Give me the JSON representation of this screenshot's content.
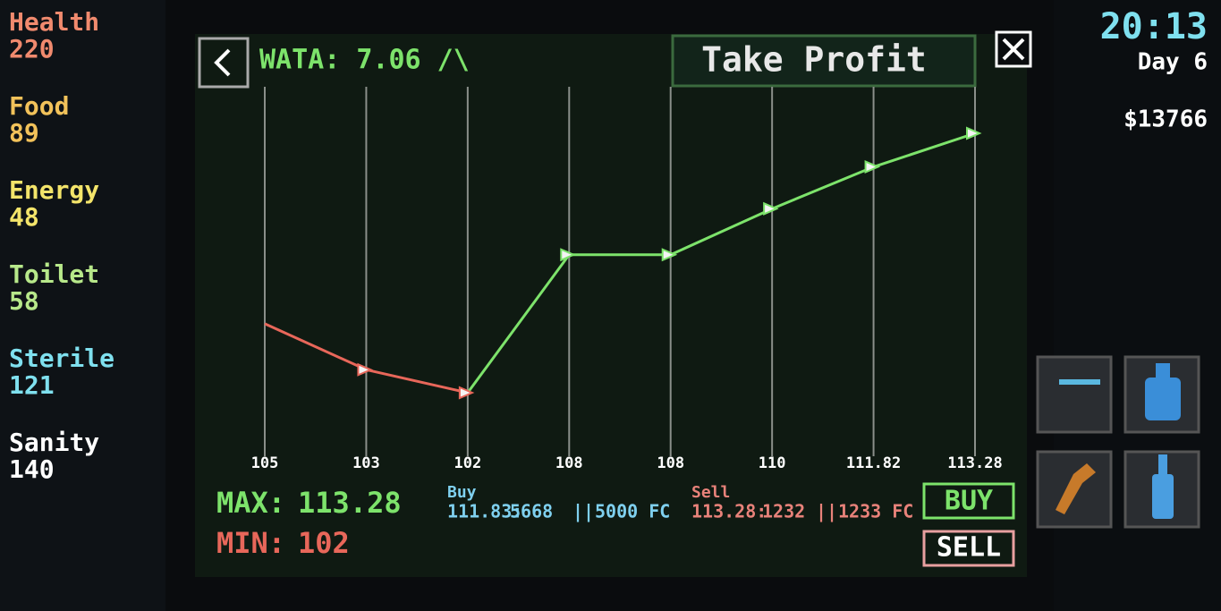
{
  "stats": [
    {
      "label": "Health",
      "value": 220,
      "color": "#f08a6e"
    },
    {
      "label": "Food",
      "value": 89,
      "color": "#f2c25a"
    },
    {
      "label": "Energy",
      "value": 48,
      "color": "#f3e46a"
    },
    {
      "label": "Toilet",
      "value": 58,
      "color": "#b7e88a"
    },
    {
      "label": "Sterile",
      "value": 121,
      "color": "#7fe0ef"
    },
    {
      "label": "Sanity",
      "value": 140,
      "color": "#ffffff"
    }
  ],
  "clock": {
    "time": "20:13",
    "day": "Day 6",
    "money": "$13766"
  },
  "header": {
    "ticker": "WATA: 7.06 /\\",
    "action": "Take Profit"
  },
  "chart_data": {
    "type": "line",
    "values": [
      105,
      103,
      102,
      108,
      108,
      110,
      111.82,
      113.28
    ],
    "up_color": "#7de36b",
    "down_color": "#e8675a"
  },
  "summary": {
    "max_label": "MAX:",
    "max": 113.28,
    "min_label": "MIN:",
    "min": 102
  },
  "buy": {
    "label": "Buy",
    "price": "111.83:",
    "amount": 5668,
    "separator": "||",
    "fc": "5000 FC"
  },
  "sell": {
    "label": "Sell",
    "price": "113.28:",
    "amount": 1232,
    "separator": "||",
    "fc": "1233 FC"
  },
  "buttons": {
    "buy": "BUY",
    "sell": "SELL"
  }
}
